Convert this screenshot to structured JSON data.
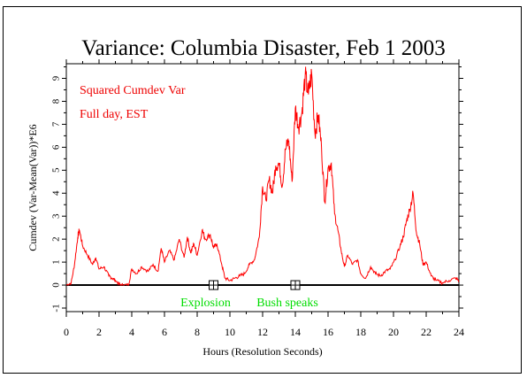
{
  "chart_data": {
    "type": "line",
    "title": "Variance: Columbia Disaster, Feb 1 2003",
    "xlabel": "Hours (Resolution Seconds)",
    "ylabel": "Cumdev (Var-Mean(Var))*E6",
    "xlim": [
      0,
      24
    ],
    "ylim": [
      -1,
      9.5
    ],
    "x_ticks": [
      0,
      2,
      4,
      6,
      8,
      10,
      12,
      14,
      16,
      18,
      20,
      22,
      24
    ],
    "y_ticks": [
      -1,
      0,
      1,
      2,
      3,
      4,
      5,
      6,
      7,
      8,
      9
    ],
    "grid": false,
    "zero_line": true,
    "annotations_text": [
      "Squared Cumdev Var",
      "Full day, EST"
    ],
    "colors": {
      "series": "#ff0000",
      "events": "#00dd00",
      "text": "#000000"
    },
    "series": [
      {
        "name": "Squared Cumdev Var",
        "x": [
          0,
          0.3,
          0.5,
          0.7,
          0.8,
          1.0,
          1.3,
          1.6,
          1.8,
          2.0,
          2.3,
          2.6,
          2.8,
          3.0,
          3.3,
          3.5,
          3.8,
          4.0,
          4.3,
          4.6,
          5.0,
          5.3,
          5.6,
          5.8,
          6.0,
          6.3,
          6.6,
          6.9,
          7.2,
          7.4,
          7.6,
          7.8,
          8.0,
          8.3,
          8.5,
          8.8,
          9.0,
          9.2,
          9.5,
          9.7,
          10.0,
          10.3,
          10.6,
          10.9,
          11.2,
          11.5,
          11.8,
          12.0,
          12.2,
          12.4,
          12.6,
          12.8,
          13.0,
          13.2,
          13.4,
          13.6,
          13.8,
          14.0,
          14.2,
          14.4,
          14.6,
          14.8,
          15.0,
          15.2,
          15.4,
          15.6,
          15.8,
          16.0,
          16.2,
          16.4,
          16.6,
          16.8,
          17.0,
          17.2,
          17.5,
          17.8,
          18.0,
          18.3,
          18.6,
          18.9,
          19.2,
          19.5,
          19.8,
          20.1,
          20.4,
          20.6,
          20.8,
          21.0,
          21.2,
          21.4,
          21.6,
          21.8,
          22.0,
          22.3,
          22.6,
          23.0,
          23.4,
          23.8,
          24.0
        ],
        "values": [
          0,
          0.1,
          0.9,
          2.1,
          2.4,
          1.7,
          1.3,
          0.9,
          1.2,
          0.7,
          0.8,
          0.4,
          0.3,
          0.2,
          0.0,
          0.0,
          0.0,
          0.7,
          0.5,
          0.8,
          0.6,
          0.9,
          0.6,
          1.6,
          1.0,
          1.5,
          1.1,
          2.0,
          1.2,
          2.1,
          1.4,
          1.8,
          1.3,
          2.4,
          2.0,
          2.2,
          1.6,
          1.8,
          0.9,
          0.3,
          0.2,
          0.3,
          0.4,
          0.5,
          0.9,
          1.1,
          2.1,
          4.3,
          3.7,
          4.6,
          4.0,
          5.2,
          5.3,
          4.3,
          5.9,
          6.3,
          4.5,
          7.7,
          6.9,
          7.5,
          9.1,
          8.3,
          9.2,
          6.6,
          7.4,
          6.0,
          3.6,
          5.1,
          5.3,
          3.1,
          2.4,
          1.5,
          0.8,
          1.3,
          0.9,
          1.1,
          0.5,
          0.3,
          0.8,
          0.5,
          0.4,
          0.6,
          0.7,
          1.1,
          1.7,
          2.1,
          2.8,
          3.3,
          4.0,
          2.3,
          1.8,
          0.9,
          1.0,
          0.4,
          0.2,
          0.1,
          0.2,
          0.3,
          0.2
        ]
      }
    ],
    "events": [
      {
        "label": "Explosion",
        "x": 9.0
      },
      {
        "label": "Bush speaks",
        "x": 14.0
      }
    ]
  }
}
